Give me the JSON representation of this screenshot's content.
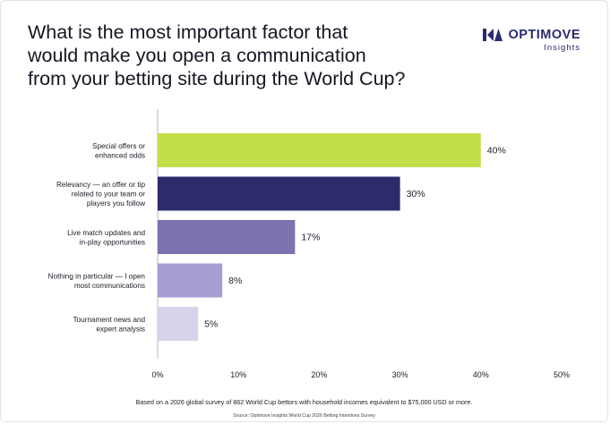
{
  "title_lines": [
    "What is the most important factor that",
    "would make you open a communication",
    "from your betting site during the World Cup?"
  ],
  "brand": {
    "name": "OPTIMOVE",
    "sub": "Insights",
    "color": "#2a2c6e"
  },
  "chart_data": {
    "type": "bar",
    "orientation": "horizontal",
    "categories": [
      [
        "Special offers or",
        "enhanced odds"
      ],
      [
        "Relevancy — an offer or tip",
        "related to your team or",
        "players you follow"
      ],
      [
        "Live match updates and",
        "in-play opportunities"
      ],
      [
        "Nothing in particular — I open",
        "most communications"
      ],
      [
        "Tournament news and",
        "expert analysis"
      ]
    ],
    "values": [
      40,
      30,
      17,
      8,
      5
    ],
    "data_labels": [
      "40%",
      "30%",
      "17%",
      "8%",
      "5%"
    ],
    "colors": [
      "#c2df4a",
      "#2c2c6c",
      "#7b72b0",
      "#a89ed4",
      "#d6d3ea"
    ],
    "xlim": [
      0,
      50
    ],
    "xticks": [
      0,
      10,
      20,
      30,
      40,
      50
    ],
    "xtick_labels": [
      "0%",
      "10%",
      "20%",
      "30%",
      "40%",
      "50%"
    ],
    "grid": false
  },
  "footnote": "Based on a 2026 global survey of 862 World Cup bettors with household incomes equivalent to $75,000 USD or more.",
  "source": "Source: Optimove Insights World Cup 2026 Betting Intentions Survey"
}
